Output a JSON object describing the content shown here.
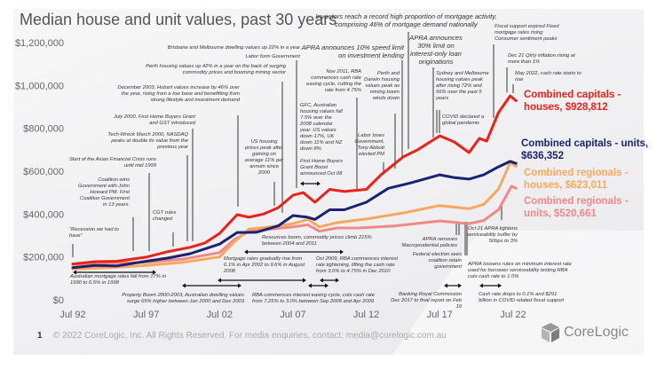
{
  "title": "Median house and unit values, past 30 years",
  "footer": {
    "page_number": "1",
    "copyright": "© 2022 CoreLogic, Inc. All Rights Reserved. For media enquiries, contact: media@corelogic.com.au",
    "logo_text": "CoreLogic"
  },
  "chart_data": {
    "type": "line",
    "title": "Median house and unit values, past 30 years",
    "xlabel": "",
    "ylabel": "",
    "ylim": [
      0,
      1200000
    ],
    "xlim": [
      1992.5,
      2022.7
    ],
    "y_ticks": [
      "$0",
      "$200,000",
      "$400,000",
      "$600,000",
      "$800,000",
      "$1,000,000",
      "$1,200,000"
    ],
    "y_tick_values": [
      0,
      200000,
      400000,
      600000,
      800000,
      1000000,
      1200000
    ],
    "x_ticks": [
      "Jul 92",
      "Jul 97",
      "Jul 02",
      "Jul 07",
      "Jul 12",
      "Jul 17",
      "Jul 22"
    ],
    "x_tick_values": [
      1992.5,
      1997.5,
      2002.5,
      2007.5,
      2012.5,
      2017.5,
      2022.5
    ],
    "grid": false,
    "legend": "right (labels at line ends)",
    "series": [
      {
        "name": "Combined capitals - houses, $928,812",
        "color": "#e8231a",
        "points": [
          [
            1992.5,
            167000
          ],
          [
            1994,
            178000
          ],
          [
            1995.5,
            180000
          ],
          [
            1997.5,
            199000
          ],
          [
            1999,
            225000
          ],
          [
            2000.5,
            245000
          ],
          [
            2001.5,
            265000
          ],
          [
            2002.5,
            310000
          ],
          [
            2003.7,
            397000
          ],
          [
            2004.5,
            385000
          ],
          [
            2005.5,
            400000
          ],
          [
            2006.5,
            430000
          ],
          [
            2007.5,
            488000
          ],
          [
            2008.2,
            500000
          ],
          [
            2009,
            455000
          ],
          [
            2010,
            515000
          ],
          [
            2011,
            505000
          ],
          [
            2012.5,
            515000
          ],
          [
            2013.5,
            583000
          ],
          [
            2015,
            666000
          ],
          [
            2016,
            700000
          ],
          [
            2017.5,
            765000
          ],
          [
            2018.5,
            736000
          ],
          [
            2019.5,
            687000
          ],
          [
            2020.2,
            753000
          ],
          [
            2020.7,
            740000
          ],
          [
            2021.5,
            873000
          ],
          [
            2022.3,
            951000
          ],
          [
            2022.7,
            928812
          ]
        ]
      },
      {
        "name": "Combined capitals - units, $636,352",
        "color": "#1a2370",
        "points": [
          [
            1992.5,
            150000
          ],
          [
            1994,
            160000
          ],
          [
            1995.5,
            158000
          ],
          [
            1997.5,
            180000
          ],
          [
            1999,
            195000
          ],
          [
            2000.5,
            215000
          ],
          [
            2002.5,
            260000
          ],
          [
            2003.7,
            314000
          ],
          [
            2005,
            315000
          ],
          [
            2006.5,
            345000
          ],
          [
            2007.5,
            393000
          ],
          [
            2008.5,
            385000
          ],
          [
            2009,
            375000
          ],
          [
            2010,
            420000
          ],
          [
            2011,
            420000
          ],
          [
            2012.5,
            455000
          ],
          [
            2014,
            520000
          ],
          [
            2015.5,
            545000
          ],
          [
            2017.5,
            583000
          ],
          [
            2018.5,
            570000
          ],
          [
            2019.5,
            563000
          ],
          [
            2020.5,
            583000
          ],
          [
            2021.5,
            620000
          ],
          [
            2022.3,
            646000
          ],
          [
            2022.7,
            636352
          ]
        ]
      },
      {
        "name": "Combined regionals - houses, $623,011",
        "color": "#f8a85e",
        "points": [
          [
            1992.5,
            143000
          ],
          [
            1995,
            150000
          ],
          [
            1997.5,
            160000
          ],
          [
            2000,
            175000
          ],
          [
            2002.5,
            200000
          ],
          [
            2003.5,
            270000
          ],
          [
            2004.5,
            330000
          ],
          [
            2006,
            340000
          ],
          [
            2007.5,
            355000
          ],
          [
            2008.5,
            375000
          ],
          [
            2009.3,
            340000
          ],
          [
            2010.5,
            360000
          ],
          [
            2012.5,
            377000
          ],
          [
            2015,
            405000
          ],
          [
            2017.5,
            440000
          ],
          [
            2019.5,
            425000
          ],
          [
            2020.5,
            445000
          ],
          [
            2021.5,
            516000
          ],
          [
            2022.3,
            640000
          ],
          [
            2022.7,
            623011
          ]
        ]
      },
      {
        "name": "Combined regionals - units, $520,661",
        "color": "#ee8a86",
        "points": [
          [
            1992.5,
            165000
          ],
          [
            1995,
            172000
          ],
          [
            1997.5,
            175000
          ],
          [
            2000,
            190000
          ],
          [
            2002.5,
            220000
          ],
          [
            2003.5,
            280000
          ],
          [
            2004.5,
            320000
          ],
          [
            2006,
            330000
          ],
          [
            2007.5,
            340000
          ],
          [
            2008.5,
            350000
          ],
          [
            2009.3,
            320000
          ],
          [
            2010.5,
            335000
          ],
          [
            2012,
            335000
          ],
          [
            2014.5,
            345000
          ],
          [
            2017.5,
            368000
          ],
          [
            2019.5,
            355000
          ],
          [
            2020.5,
            370000
          ],
          [
            2021.5,
            420000
          ],
          [
            2022.4,
            530000
          ],
          [
            2022.7,
            520661
          ]
        ]
      }
    ],
    "labels": [
      {
        "line1": "Combined capitals -",
        "line2": "houses, $928,812",
        "color": "#e8231a"
      },
      {
        "line1": "Combined capitals - units,",
        "line2": "$636,352",
        "color": "#1a2370"
      },
      {
        "line1": "Combined regionals -",
        "line2": "houses, $623,011",
        "color": "#f8a85e"
      },
      {
        "line1": "Combined regionals -",
        "line2": "units, $520,661",
        "color": "#ee8a86"
      }
    ],
    "annotations": [
      "Brisbane and Melbourne dwelling values up 22% in a year",
      "Labor form Government",
      "Perth housing values up 42% in a year on the back of surging commodity prices and booming mining sector",
      "December 2003, Hobart values increase by 46% over the year, rising from a low base and benefitting from strong lifestyle and investment demand",
      "July 2000, First Home Buyers Grant and GST introduced",
      "Tech-Wreck March 2000, NASDAQ peaks at double its value from the previous year",
      "Start of the Asian Financial Crisis runs until mid 1999",
      "Coalition wins Government with John Howard PM. First Coalition Government in 13 years.",
      "\"Recession we had to have\"",
      "CGT rules changed",
      "US housing prices peak after gaining on average 11% per annum since 2000",
      "GFC, Australian housing values fall 7.5% over the 2008 calendar year. US values down 17%, UK down 11% and NZ down 8%",
      "First Home Buyers Grant Boost announced Oct 08",
      "Nov 2011, RBA commences cash rate easing cycle, cutting the rate from 4.75%",
      "APRA announces 10% speed limit on investment lending",
      "Investors reach a record high proportion of mortgage activity, comprising 46% of mortgage demand nationally",
      "Perth and Darwin housing values peak as mining boom winds down",
      "Labor loses Government, Tony Abbott elected PM",
      "APRA announces 30% limit on interest-only loan originations",
      "Sydney and Melbourne housing values peak after rising 72% and 56% over the past 5 years",
      "COVID declared a global pandemic",
      "Fiscal support expired Fixed mortgage rates rising Consumer sentiment peaks",
      "Dec 21 Qtrly inflation rising at more than 1%",
      "May 2022, cash rate starts to rise",
      "Resources boom, commodity prices climb 215% between 2004 and 2011",
      "Mortgage rates gradually rise from 6.1% in Apr 2002 to 9.6% in August 2008",
      "Oct 2009, RBA commences interest rate tightening, lifting the cash rate from 3.0% to 4.75% in Dec 2010",
      "Australian mortgage rates fall from 17% in 1990 to 6.5% in 1998",
      "Property Boom 2000-2003, Australian dwelling values surge 65% higher between Jan 2000 and Dec 2003",
      "RBA commences interest easing cycle, cuts cash rate from 7.25% to 3.0% between Sep 2008 and Apr 2009",
      "APRA removes Macroprudential policies",
      "Federal election sees coalition retain government",
      "Oct 21 APRA tightens serviceability buffer by 50bps to 3%",
      "APRA loosens rules on minimum interest rate used for borrower serviceability testing RBA cuts cash rate to 1.0%",
      "Banking Royal Commission Dec 2017 to final report on Feb 19",
      "Cash rate drops to 0.1% and $291 billion in COVID related fiscal support"
    ]
  }
}
